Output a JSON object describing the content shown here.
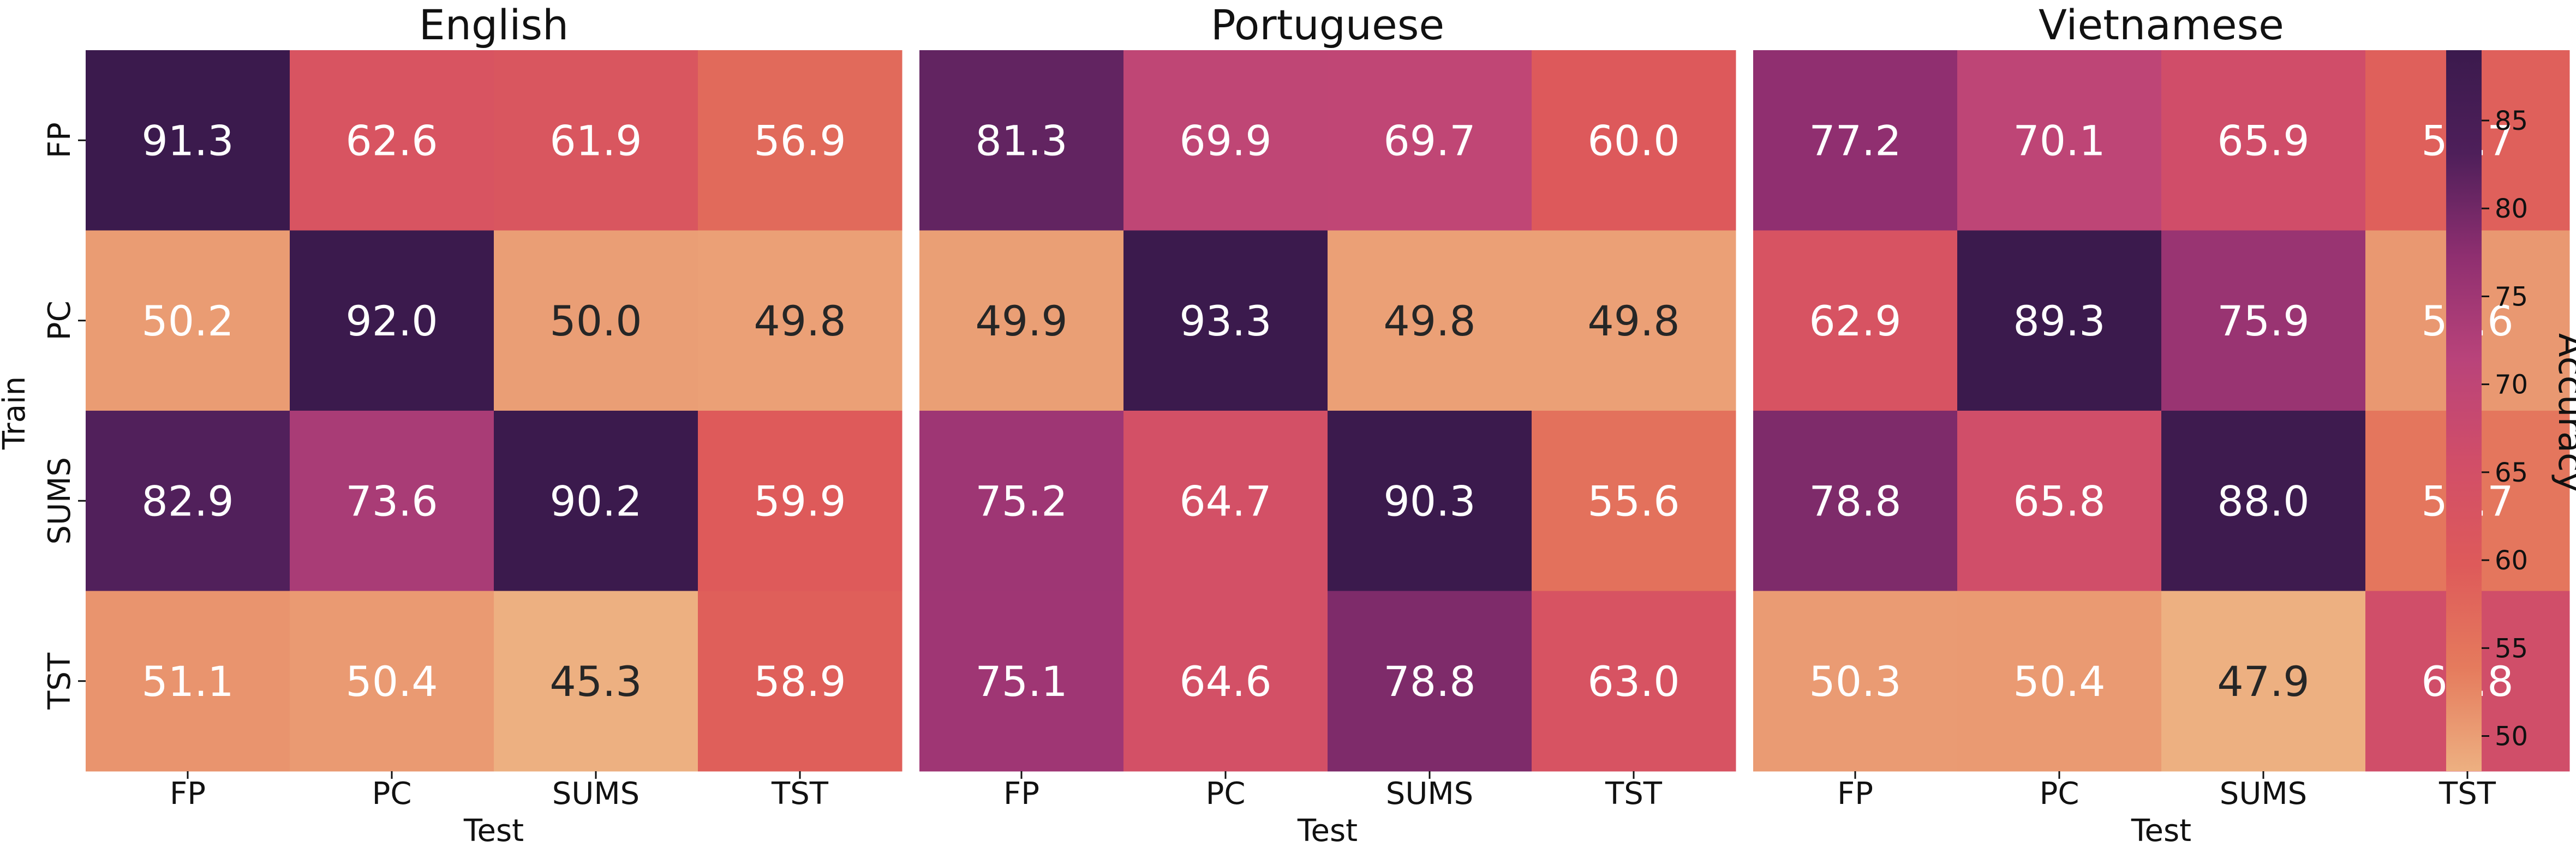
{
  "chart_data": {
    "type": "heatmap",
    "panels": [
      {
        "title": "English",
        "xlabel": "Test",
        "x": [
          "FP",
          "PC",
          "SUMS",
          "TST"
        ],
        "values": [
          [
            91.3,
            62.6,
            61.9,
            56.9
          ],
          [
            50.2,
            92.0,
            50.0,
            49.8
          ],
          [
            82.9,
            73.6,
            90.2,
            59.9
          ],
          [
            51.1,
            50.4,
            45.3,
            58.9
          ]
        ]
      },
      {
        "title": "Portuguese",
        "xlabel": "Test",
        "x": [
          "FP",
          "PC",
          "SUMS",
          "TST"
        ],
        "values": [
          [
            81.3,
            69.9,
            69.7,
            60.0
          ],
          [
            49.9,
            93.3,
            49.8,
            49.8
          ],
          [
            75.2,
            64.7,
            90.3,
            55.6
          ],
          [
            75.1,
            64.6,
            78.8,
            63.0
          ]
        ]
      },
      {
        "title": "Vietnamese",
        "xlabel": "Test",
        "x": [
          "FP",
          "PC",
          "SUMS",
          "TST"
        ],
        "values": [
          [
            77.2,
            70.1,
            65.9,
            58.7
          ],
          [
            62.9,
            89.3,
            75.9,
            50.6
          ],
          [
            78.8,
            65.8,
            88.0,
            54.7
          ],
          [
            50.3,
            50.4,
            47.9,
            65.8
          ]
        ]
      }
    ],
    "y": [
      "FP",
      "PC",
      "SUMS",
      "TST"
    ],
    "ylabel": "Train",
    "colorbar": {
      "label": "Accuracy",
      "ticks": [
        50,
        55,
        60,
        65,
        70,
        75,
        80,
        85
      ],
      "range": [
        48,
        89
      ],
      "colormap": "flare",
      "colors": [
        "#edb081",
        "#e57b5d",
        "#de5a5a",
        "#d14e68",
        "#b9437a",
        "#8f2f70",
        "#4e1f5a",
        "#3b1a4d"
      ]
    }
  }
}
